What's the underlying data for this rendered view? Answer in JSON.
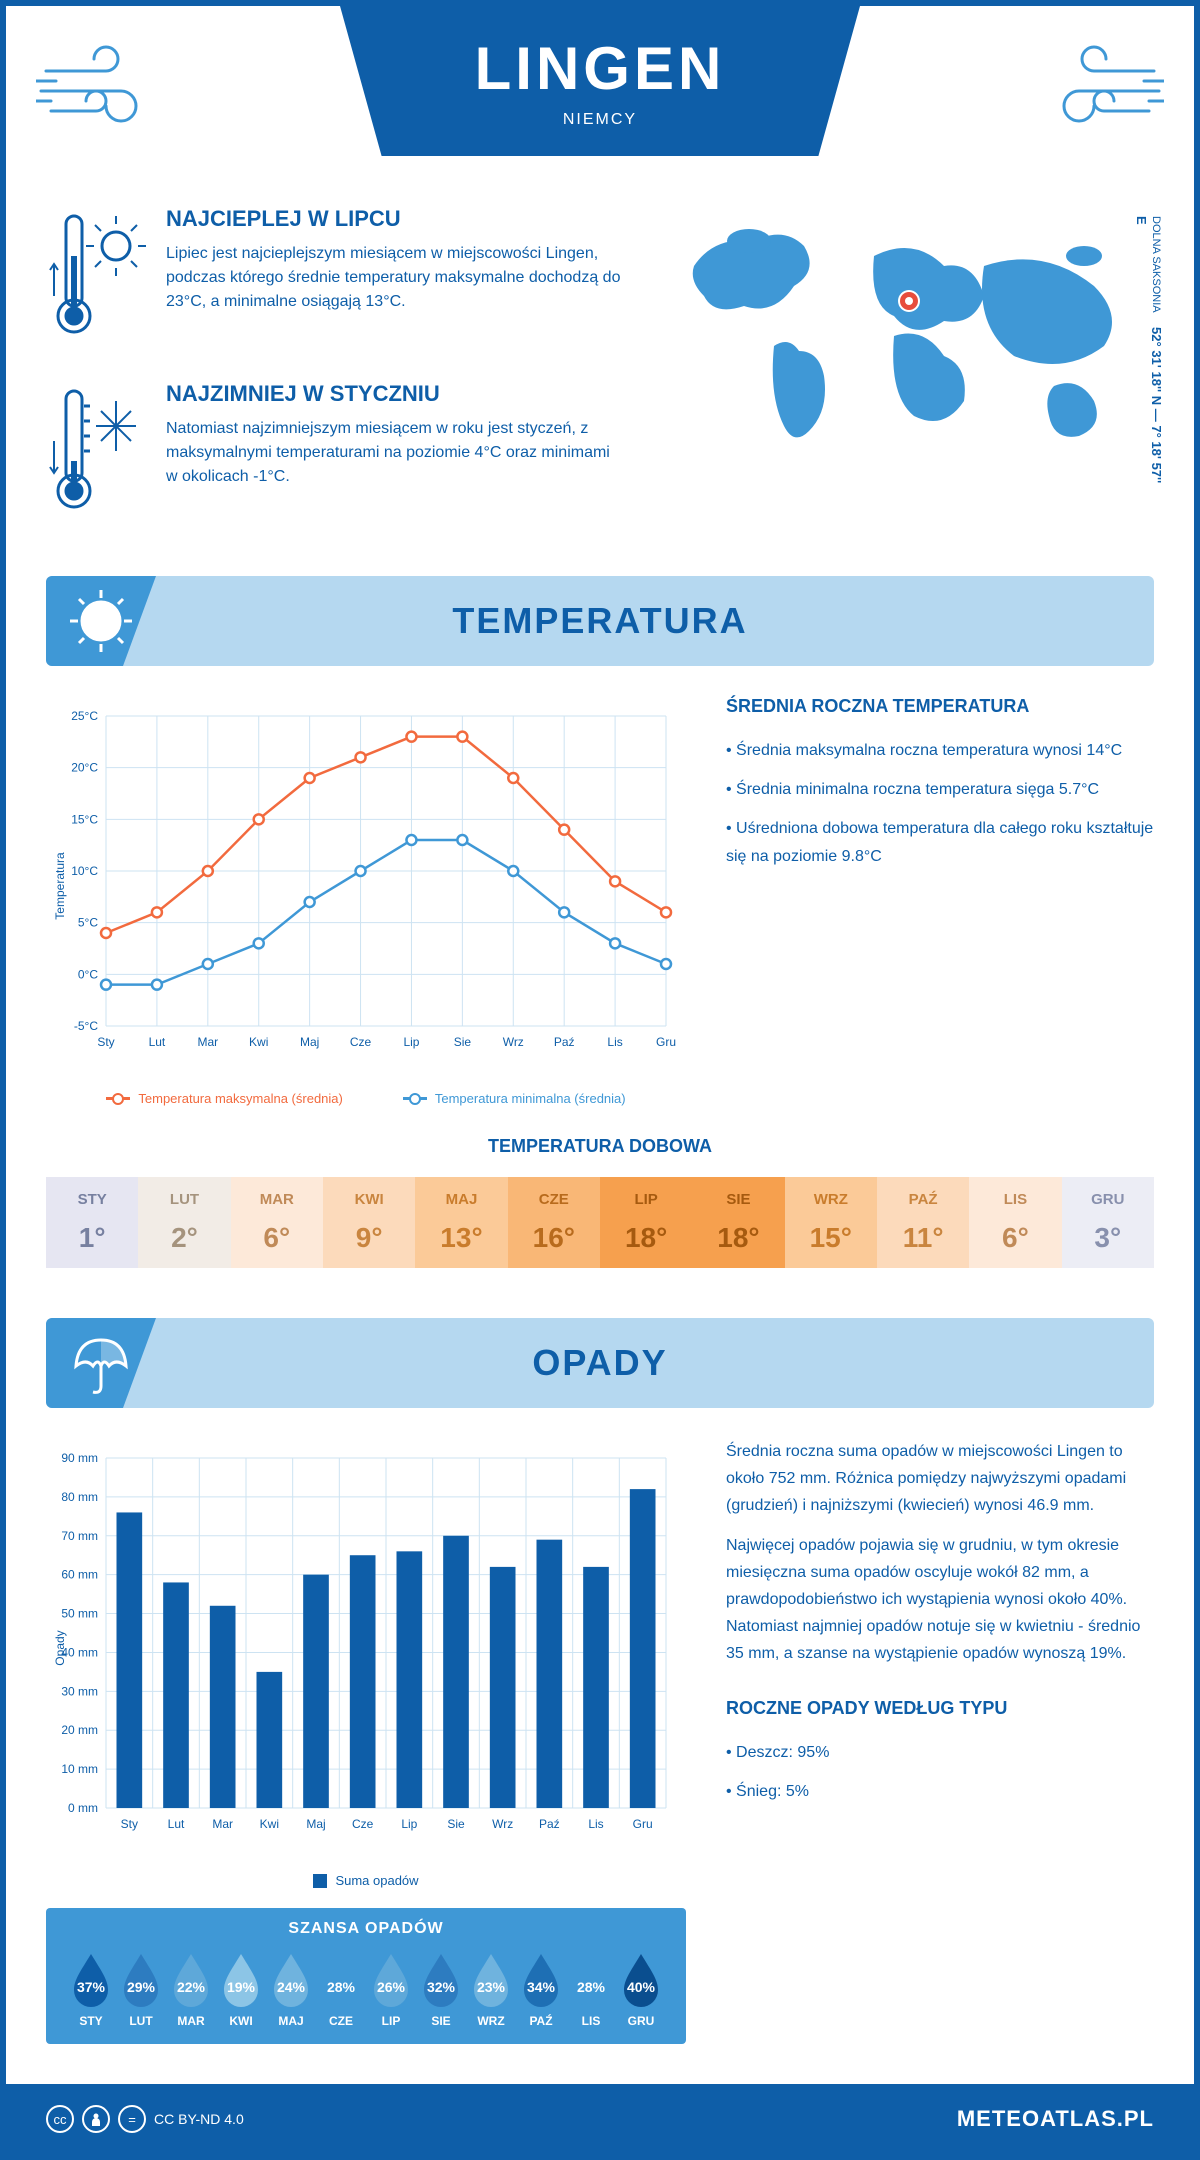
{
  "header": {
    "city": "LINGEN",
    "country": "NIEMCY"
  },
  "coords": {
    "lat": "52° 31' 18'' N",
    "lon": "7° 18' 57'' E",
    "region": "DOLNA SAKSONIA"
  },
  "warmest": {
    "title": "NAJCIEPLEJ W LIPCU",
    "text": "Lipiec jest najcieplejszym miesiącem w miejscowości Lingen, podczas którego średnie temperatury maksymalne dochodzą do 23°C, a minimalne osiągają 13°C."
  },
  "coldest": {
    "title": "NAJZIMNIEJ W STYCZNIU",
    "text": "Natomiast najzimniejszym miesiącem w roku jest styczeń, z maksymalnymi temperaturami na poziomie 4°C oraz minimami w okolicach -1°C."
  },
  "temp_section": {
    "title": "TEMPERATURA"
  },
  "temp_chart": {
    "months": [
      "Sty",
      "Lut",
      "Mar",
      "Kwi",
      "Maj",
      "Cze",
      "Lip",
      "Sie",
      "Wrz",
      "Paź",
      "Lis",
      "Gru"
    ],
    "max_series": [
      4,
      6,
      10,
      15,
      19,
      21,
      23,
      23,
      19,
      14,
      9,
      6
    ],
    "min_series": [
      -1,
      -1,
      1,
      3,
      7,
      10,
      13,
      13,
      10,
      6,
      3,
      1
    ],
    "max_color": "#f26a3e",
    "min_color": "#3f98d6",
    "y_axis_label": "Temperatura",
    "y_min": -5,
    "y_max": 25,
    "y_step": 5,
    "grid_color": "#cde3f2",
    "legend_max": "Temperatura maksymalna (średnia)",
    "legend_min": "Temperatura minimalna (średnia)"
  },
  "temp_avg": {
    "title": "ŚREDNIA ROCZNA TEMPERATURA",
    "bullets": [
      "Średnia maksymalna roczna temperatura wynosi 14°C",
      "Średnia minimalna roczna temperatura sięga 5.7°C",
      "Uśredniona dobowa temperatura dla całego roku kształtuje się na poziomie 9.8°C"
    ]
  },
  "daily": {
    "title": "TEMPERATURA DOBOWA",
    "months": [
      "STY",
      "LUT",
      "MAR",
      "KWI",
      "MAJ",
      "CZE",
      "LIP",
      "SIE",
      "WRZ",
      "PAŹ",
      "LIS",
      "GRU"
    ],
    "values": [
      "1°",
      "2°",
      "6°",
      "9°",
      "13°",
      "16°",
      "18°",
      "18°",
      "15°",
      "11°",
      "6°",
      "3°"
    ],
    "bg_colors": [
      "#e6e6f2",
      "#f2ece6",
      "#fde9d9",
      "#fcdabb",
      "#fbca98",
      "#f9b776",
      "#f6a04e",
      "#f6a04e",
      "#fbca98",
      "#fcdabb",
      "#fde9d9",
      "#ecedf5"
    ],
    "text_colors": [
      "#7780a0",
      "#a5937d",
      "#c08a58",
      "#c9853f",
      "#c97c2c",
      "#b86b1d",
      "#a65a0f",
      "#a65a0f",
      "#c97c2c",
      "#c9853f",
      "#c08a58",
      "#8890ad"
    ]
  },
  "precip_section": {
    "title": "OPADY"
  },
  "precip_chart": {
    "months": [
      "Sty",
      "Lut",
      "Mar",
      "Kwi",
      "Maj",
      "Cze",
      "Lip",
      "Sie",
      "Wrz",
      "Paź",
      "Lis",
      "Gru"
    ],
    "values": [
      76,
      58,
      52,
      35,
      60,
      65,
      66,
      70,
      62,
      69,
      62,
      82
    ],
    "y_axis_label": "Opady",
    "y_min": 0,
    "y_max": 90,
    "y_step": 10,
    "bar_color": "#0e5ea8",
    "grid_color": "#cde3f2",
    "legend_label": "Suma opadów"
  },
  "precip_text": {
    "para1": "Średnia roczna suma opadów w miejscowości Lingen to około 752 mm. Różnica pomiędzy najwyższymi opadami (grudzień) i najniższymi (kwiecień) wynosi 46.9 mm.",
    "para2": "Najwięcej opadów pojawia się w grudniu, w tym okresie miesięczna suma opadów oscyluje wokół 82 mm, a prawdopodobieństwo ich wystąpienia wynosi około 40%. Natomiast najmniej opadów notuje się w kwietniu - średnio 35 mm, a szanse na wystąpienie opadów wynoszą 19%."
  },
  "chance": {
    "title": "SZANSA OPADÓW",
    "months": [
      "STY",
      "LUT",
      "MAR",
      "KWI",
      "MAJ",
      "CZE",
      "LIP",
      "SIE",
      "WRZ",
      "PAŹ",
      "LIS",
      "GRU"
    ],
    "pct": [
      "37%",
      "29%",
      "22%",
      "19%",
      "24%",
      "28%",
      "26%",
      "32%",
      "23%",
      "34%",
      "28%",
      "40%"
    ],
    "colors": [
      "#0e5ea8",
      "#2d7cc0",
      "#5ea8d9",
      "#8cc5e6",
      "#6fb3de",
      "#3f98d6",
      "#5ea8d9",
      "#2d7cc0",
      "#6fb3de",
      "#1e6fb4",
      "#3f98d6",
      "#0a4e8f"
    ]
  },
  "precip_type": {
    "title": "ROCZNE OPADY WEDŁUG TYPU",
    "bullets": [
      "Deszcz: 95%",
      "Śnieg: 5%"
    ]
  },
  "footer": {
    "license": "CC BY-ND 4.0",
    "brand": "METEOATLAS.PL"
  }
}
